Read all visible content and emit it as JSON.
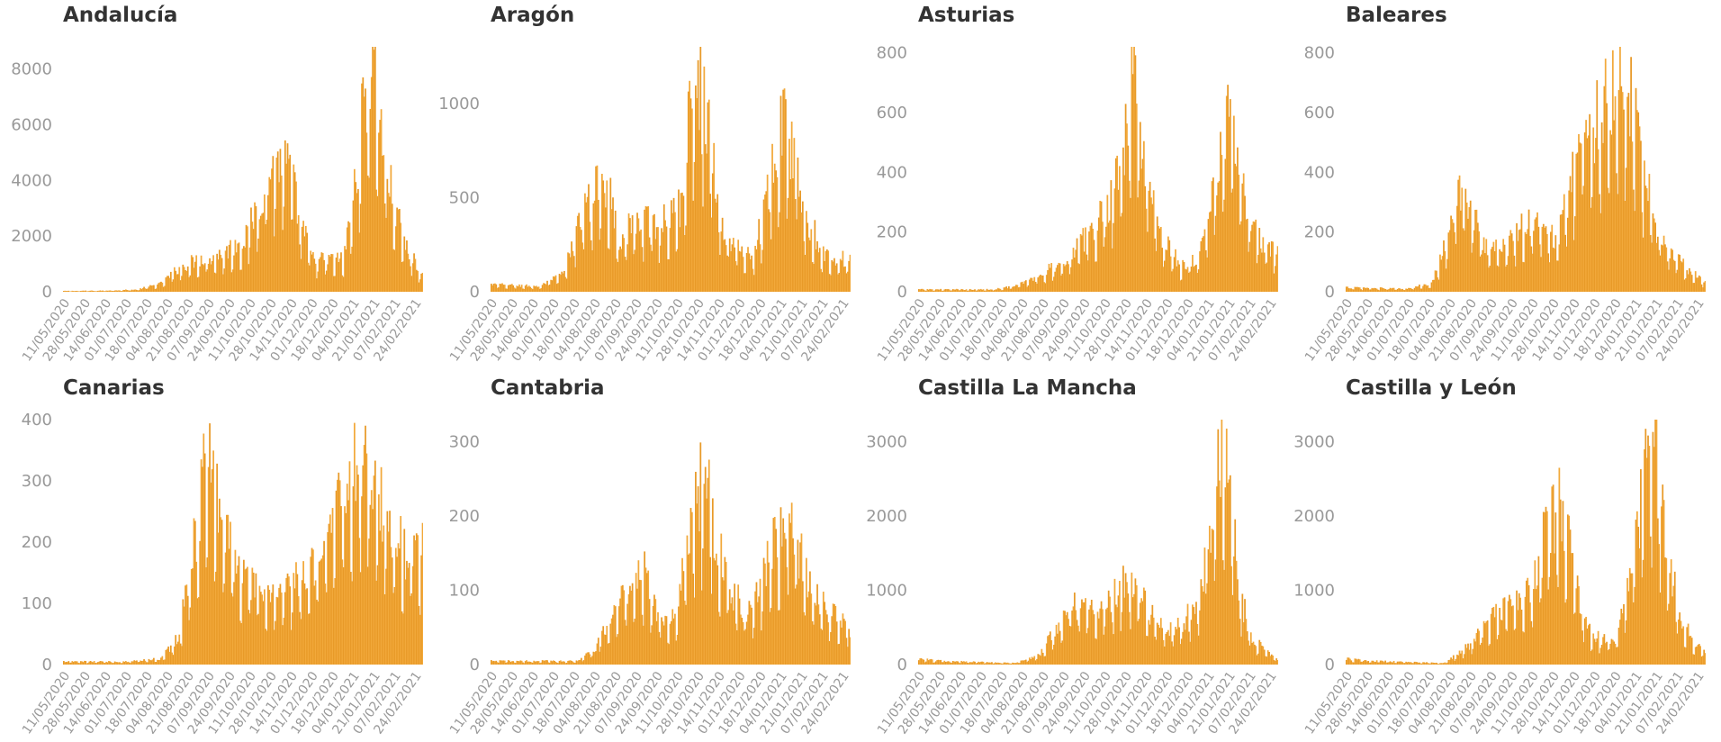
{
  "chart_style": {
    "bar_color": "#f2a93b",
    "bar_dark": "#e89a28",
    "text_color": "#333333",
    "tick_color": "#999999"
  },
  "x_tick_labels": [
    "11/05/2020",
    "28/05/2020",
    "14/06/2020",
    "01/07/2020",
    "18/07/2020",
    "04/08/2020",
    "21/08/2020",
    "07/09/2020",
    "24/09/2020",
    "11/10/2020",
    "28/10/2020",
    "14/11/2020",
    "01/12/2020",
    "18/12/2020",
    "04/01/2021",
    "21/01/2021",
    "07/02/2021",
    "24/02/2021"
  ],
  "chart_data": [
    {
      "type": "bar",
      "title": "Andalucía",
      "x_start": "2020-05-11",
      "x_end": "2021-03-02",
      "ylim": [
        0,
        8800
      ],
      "yticks": [
        0,
        2000,
        4000,
        6000,
        8000
      ],
      "grid": false,
      "profile": [
        [
          0,
          30
        ],
        [
          30,
          40
        ],
        [
          60,
          80
        ],
        [
          80,
          300
        ],
        [
          95,
          900
        ],
        [
          110,
          1200
        ],
        [
          130,
          1400
        ],
        [
          150,
          2000
        ],
        [
          165,
          4000
        ],
        [
          175,
          4900
        ],
        [
          185,
          4700
        ],
        [
          195,
          2500
        ],
        [
          205,
          1200
        ],
        [
          230,
          1200
        ],
        [
          240,
          4000
        ],
        [
          248,
          7500
        ],
        [
          255,
          8800
        ],
        [
          262,
          5500
        ],
        [
          270,
          3500
        ],
        [
          280,
          1800
        ],
        [
          295,
          600
        ]
      ]
    },
    {
      "type": "bar",
      "title": "Aragón",
      "x_start": "2020-05-11",
      "x_end": "2021-03-02",
      "ylim": [
        0,
        1300
      ],
      "yticks": [
        0,
        500,
        1000
      ],
      "grid": false,
      "profile": [
        [
          0,
          40
        ],
        [
          40,
          30
        ],
        [
          60,
          100
        ],
        [
          70,
          350
        ],
        [
          85,
          550
        ],
        [
          95,
          600
        ],
        [
          105,
          300
        ],
        [
          120,
          380
        ],
        [
          140,
          380
        ],
        [
          155,
          450
        ],
        [
          162,
          900
        ],
        [
          168,
          1250
        ],
        [
          175,
          1100
        ],
        [
          182,
          750
        ],
        [
          190,
          350
        ],
        [
          200,
          250
        ],
        [
          215,
          200
        ],
        [
          225,
          450
        ],
        [
          232,
          800
        ],
        [
          240,
          900
        ],
        [
          250,
          750
        ],
        [
          260,
          400
        ],
        [
          275,
          200
        ],
        [
          295,
          170
        ]
      ]
    },
    {
      "type": "bar",
      "title": "Asturias",
      "x_start": "2020-05-11",
      "x_end": "2021-03-02",
      "ylim": [
        0,
        820
      ],
      "yticks": [
        0,
        200,
        400,
        600,
        800
      ],
      "grid": false,
      "profile": [
        [
          0,
          8
        ],
        [
          60,
          8
        ],
        [
          80,
          20
        ],
        [
          100,
          60
        ],
        [
          120,
          110
        ],
        [
          140,
          200
        ],
        [
          155,
          300
        ],
        [
          165,
          450
        ],
        [
          172,
          600
        ],
        [
          177,
          800
        ],
        [
          182,
          550
        ],
        [
          190,
          350
        ],
        [
          200,
          200
        ],
        [
          215,
          90
        ],
        [
          230,
          120
        ],
        [
          240,
          300
        ],
        [
          248,
          500
        ],
        [
          255,
          600
        ],
        [
          262,
          450
        ],
        [
          272,
          250
        ],
        [
          285,
          150
        ],
        [
          295,
          130
        ]
      ]
    },
    {
      "type": "bar",
      "title": "Baleares",
      "x_start": "2020-05-11",
      "x_end": "2021-03-02",
      "ylim": [
        0,
        820
      ],
      "yticks": [
        0,
        200,
        400,
        600,
        800
      ],
      "grid": false,
      "profile": [
        [
          0,
          15
        ],
        [
          50,
          10
        ],
        [
          70,
          30
        ],
        [
          80,
          150
        ],
        [
          90,
          330
        ],
        [
          96,
          360
        ],
        [
          105,
          250
        ],
        [
          115,
          160
        ],
        [
          130,
          150
        ],
        [
          145,
          230
        ],
        [
          155,
          270
        ],
        [
          165,
          200
        ],
        [
          175,
          200
        ],
        [
          185,
          400
        ],
        [
          195,
          550
        ],
        [
          205,
          600
        ],
        [
          215,
          680
        ],
        [
          225,
          750
        ],
        [
          233,
          700
        ],
        [
          242,
          500
        ],
        [
          252,
          250
        ],
        [
          265,
          150
        ],
        [
          280,
          80
        ],
        [
          295,
          30
        ]
      ]
    },
    {
      "type": "bar",
      "title": "Canarias",
      "x_start": "2020-05-11",
      "x_end": "2021-03-02",
      "ylim": [
        0,
        400
      ],
      "yticks": [
        0,
        100,
        200,
        300,
        400
      ],
      "grid": false,
      "profile": [
        [
          0,
          5
        ],
        [
          50,
          5
        ],
        [
          80,
          10
        ],
        [
          95,
          50
        ],
        [
          105,
          180
        ],
        [
          115,
          310
        ],
        [
          122,
          360
        ],
        [
          130,
          250
        ],
        [
          140,
          180
        ],
        [
          155,
          130
        ],
        [
          170,
          120
        ],
        [
          185,
          130
        ],
        [
          200,
          150
        ],
        [
          215,
          220
        ],
        [
          225,
          280
        ],
        [
          235,
          320
        ],
        [
          245,
          340
        ],
        [
          255,
          320
        ],
        [
          265,
          240
        ],
        [
          280,
          190
        ],
        [
          295,
          190
        ]
      ]
    },
    {
      "type": "bar",
      "title": "Cantabria",
      "x_start": "2020-05-11",
      "x_end": "2021-03-02",
      "ylim": [
        0,
        330
      ],
      "yticks": [
        0,
        100,
        200,
        300
      ],
      "grid": false,
      "profile": [
        [
          0,
          5
        ],
        [
          70,
          5
        ],
        [
          85,
          20
        ],
        [
          100,
          70
        ],
        [
          115,
          120
        ],
        [
          125,
          130
        ],
        [
          135,
          80
        ],
        [
          150,
          60
        ],
        [
          160,
          150
        ],
        [
          170,
          250
        ],
        [
          178,
          240
        ],
        [
          185,
          170
        ],
        [
          195,
          110
        ],
        [
          210,
          70
        ],
        [
          220,
          100
        ],
        [
          232,
          170
        ],
        [
          242,
          200
        ],
        [
          252,
          160
        ],
        [
          265,
          100
        ],
        [
          280,
          70
        ],
        [
          295,
          50
        ]
      ]
    },
    {
      "type": "bar",
      "title": "Castilla La Mancha",
      "x_start": "2020-05-11",
      "x_end": "2021-03-02",
      "ylim": [
        0,
        3300
      ],
      "yticks": [
        0,
        1000,
        2000,
        3000
      ],
      "grid": false,
      "profile": [
        [
          0,
          80
        ],
        [
          20,
          50
        ],
        [
          80,
          20
        ],
        [
          100,
          150
        ],
        [
          115,
          600
        ],
        [
          125,
          850
        ],
        [
          140,
          750
        ],
        [
          155,
          900
        ],
        [
          170,
          1150
        ],
        [
          180,
          1100
        ],
        [
          190,
          700
        ],
        [
          205,
          450
        ],
        [
          215,
          550
        ],
        [
          230,
          900
        ],
        [
          238,
          1800
        ],
        [
          245,
          2800
        ],
        [
          251,
          3100
        ],
        [
          256,
          2500
        ],
        [
          263,
          1000
        ],
        [
          275,
          350
        ],
        [
          290,
          130
        ],
        [
          295,
          80
        ]
      ]
    },
    {
      "type": "bar",
      "title": "Castilla y León",
      "x_start": "2020-05-11",
      "x_end": "2021-03-02",
      "ylim": [
        0,
        3300
      ],
      "yticks": [
        0,
        1000,
        2000,
        3000
      ],
      "grid": false,
      "profile": [
        [
          0,
          80
        ],
        [
          20,
          50
        ],
        [
          80,
          20
        ],
        [
          100,
          250
        ],
        [
          115,
          550
        ],
        [
          125,
          750
        ],
        [
          140,
          900
        ],
        [
          155,
          1200
        ],
        [
          165,
          1900
        ],
        [
          175,
          2200
        ],
        [
          182,
          2000
        ],
        [
          190,
          1000
        ],
        [
          200,
          450
        ],
        [
          210,
          350
        ],
        [
          220,
          300
        ],
        [
          230,
          900
        ],
        [
          240,
          2000
        ],
        [
          248,
          2900
        ],
        [
          253,
          3000
        ],
        [
          258,
          2400
        ],
        [
          265,
          1400
        ],
        [
          275,
          700
        ],
        [
          285,
          350
        ],
        [
          295,
          200
        ]
      ]
    }
  ]
}
